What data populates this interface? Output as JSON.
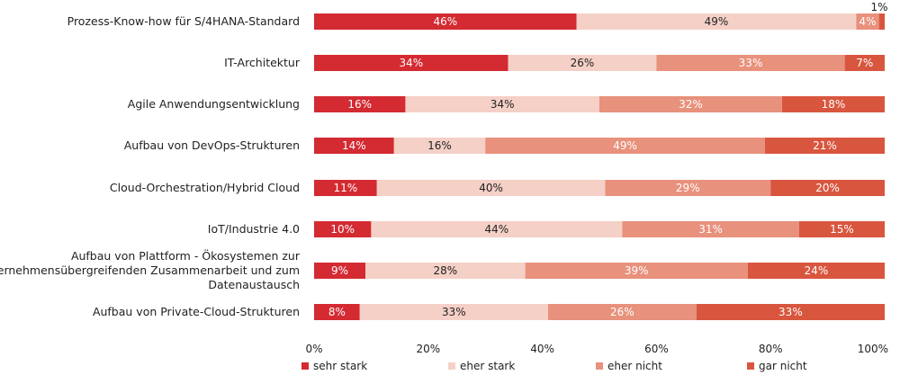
{
  "chart_data": {
    "type": "bar",
    "orientation": "horizontal",
    "stacked": true,
    "categories": [
      "Prozess-Know-how für S/4HANA-Standard",
      "IT-Architektur",
      "Agile Anwendungsentwicklung",
      "Aufbau von DevOps-Strukturen",
      "Cloud-Orchestration/Hybrid Cloud",
      "IoT/Industrie 4.0",
      "Aufbau von Plattform - Ökosystemen zur unternehmensübergreifenden Zusammenarbeit und zum Datenaustausch",
      "Aufbau von Private-Cloud-Strukturen"
    ],
    "category_lines": [
      [
        "Prozess-Know-how für S/4HANA-Standard"
      ],
      [
        "IT-Architektur"
      ],
      [
        "Agile Anwendungsentwicklung"
      ],
      [
        "Aufbau von DevOps-Strukturen"
      ],
      [
        "Cloud-Orchestration/Hybrid Cloud"
      ],
      [
        "IoT/Industrie 4.0"
      ],
      [
        "Aufbau von Plattform - Ökosystemen zur",
        "unternehmensübergreifenden Zusammenarbeit und zum",
        "Datenaustausch"
      ],
      [
        "Aufbau von Private-Cloud-Strukturen"
      ]
    ],
    "series": [
      {
        "name": "sehr stark",
        "color": "#d42a32",
        "label_color": "#ffffff",
        "values": [
          46,
          34,
          16,
          14,
          11,
          10,
          9,
          8
        ]
      },
      {
        "name": "eher stark",
        "color": "#f5d0c6",
        "label_color": "#222222",
        "values": [
          49,
          26,
          34,
          16,
          40,
          44,
          28,
          33
        ]
      },
      {
        "name": "eher nicht",
        "color": "#e8917c",
        "label_color": "#ffffff",
        "values": [
          4,
          33,
          32,
          49,
          29,
          31,
          39,
          26
        ]
      },
      {
        "name": "gar nicht",
        "color": "#d9563e",
        "label_color": "#ffffff",
        "values": [
          1,
          7,
          18,
          21,
          20,
          15,
          24,
          33
        ]
      }
    ],
    "x_ticks": [
      "0%",
      "20%",
      "40%",
      "60%",
      "80%",
      "100%"
    ],
    "xlim": [
      0,
      100
    ],
    "grid": false,
    "legend_position": "bottom"
  }
}
